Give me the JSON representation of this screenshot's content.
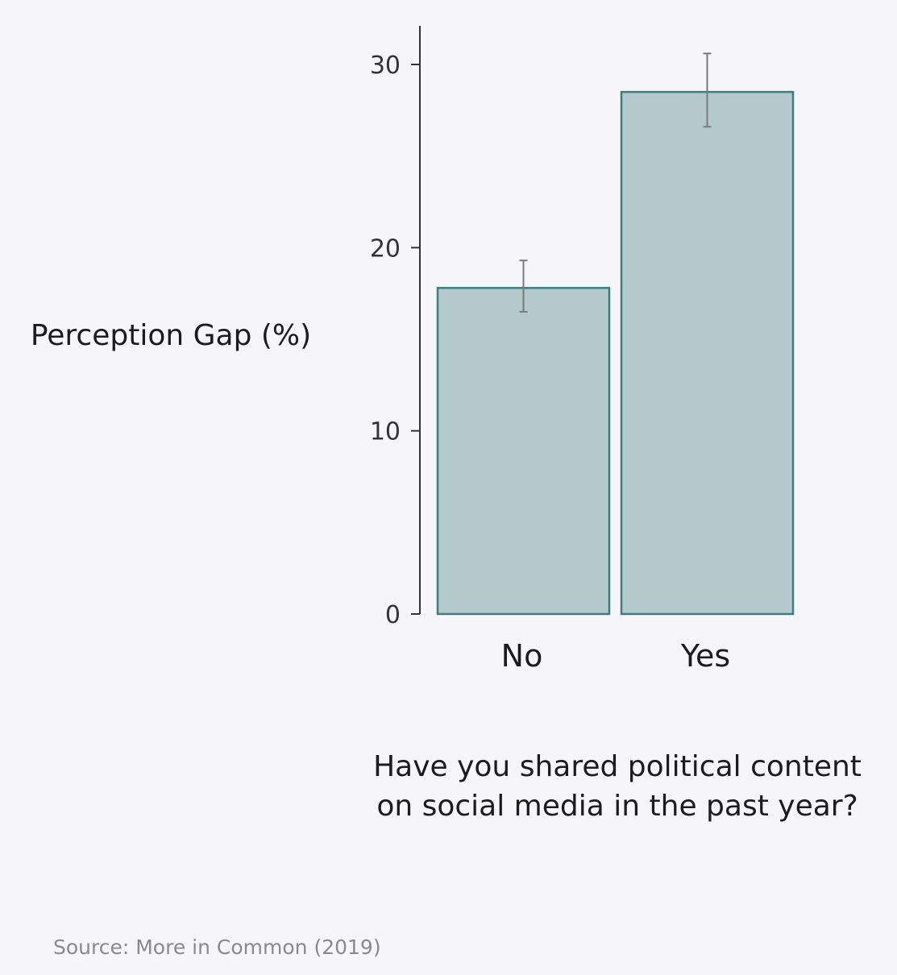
{
  "chart_data": {
    "type": "bar",
    "categories": [
      "No",
      "Yes"
    ],
    "values": [
      17.8,
      28.5
    ],
    "error_bars": [
      {
        "low": 16.5,
        "high": 19.3
      },
      {
        "low": 26.6,
        "high": 30.6
      }
    ],
    "ylabel": "Perception Gap (%)",
    "xlabel_lines": [
      "Have you shared political content",
      "on social media in the past year?"
    ],
    "ylim": [
      0,
      32
    ],
    "yticks": [
      0,
      10,
      20,
      30
    ],
    "grid": false,
    "legend": "none",
    "colors": {
      "bar_fill": "#b3c9cb",
      "bar_stroke": "#3f7c80",
      "axis": "#333333",
      "error_bar": "#7a7a7a"
    }
  },
  "source": "Source: More in Common (2019)"
}
